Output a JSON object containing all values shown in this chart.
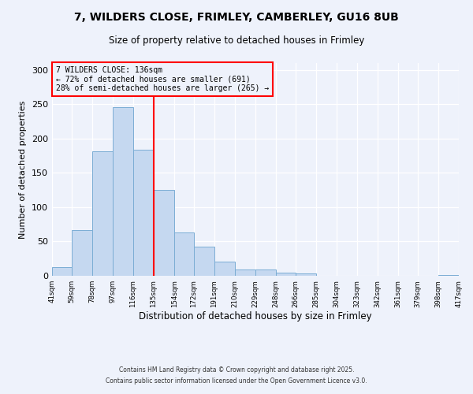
{
  "title": "7, WILDERS CLOSE, FRIMLEY, CAMBERLEY, GU16 8UB",
  "subtitle": "Size of property relative to detached houses in Frimley",
  "xlabel": "Distribution of detached houses by size in Frimley",
  "ylabel": "Number of detached properties",
  "bar_color": "#c5d8f0",
  "bar_edge_color": "#7badd4",
  "vline_x": 135,
  "vline_color": "red",
  "annotation_title": "7 WILDERS CLOSE: 136sqm",
  "annotation_line1": "← 72% of detached houses are smaller (691)",
  "annotation_line2": "28% of semi-detached houses are larger (265) →",
  "annotation_box_color": "red",
  "footer1": "Contains HM Land Registry data © Crown copyright and database right 2025.",
  "footer2": "Contains public sector information licensed under the Open Government Licence v3.0.",
  "bins": [
    41,
    59,
    78,
    97,
    116,
    135,
    154,
    172,
    191,
    210,
    229,
    248,
    266,
    285,
    304,
    323,
    342,
    361,
    379,
    398,
    417
  ],
  "counts": [
    13,
    67,
    181,
    246,
    184,
    125,
    63,
    42,
    21,
    9,
    9,
    5,
    4,
    0,
    0,
    0,
    0,
    0,
    0,
    1
  ],
  "ylim": [
    0,
    310
  ],
  "yticks": [
    0,
    50,
    100,
    150,
    200,
    250,
    300
  ],
  "background_color": "#eef2fb"
}
